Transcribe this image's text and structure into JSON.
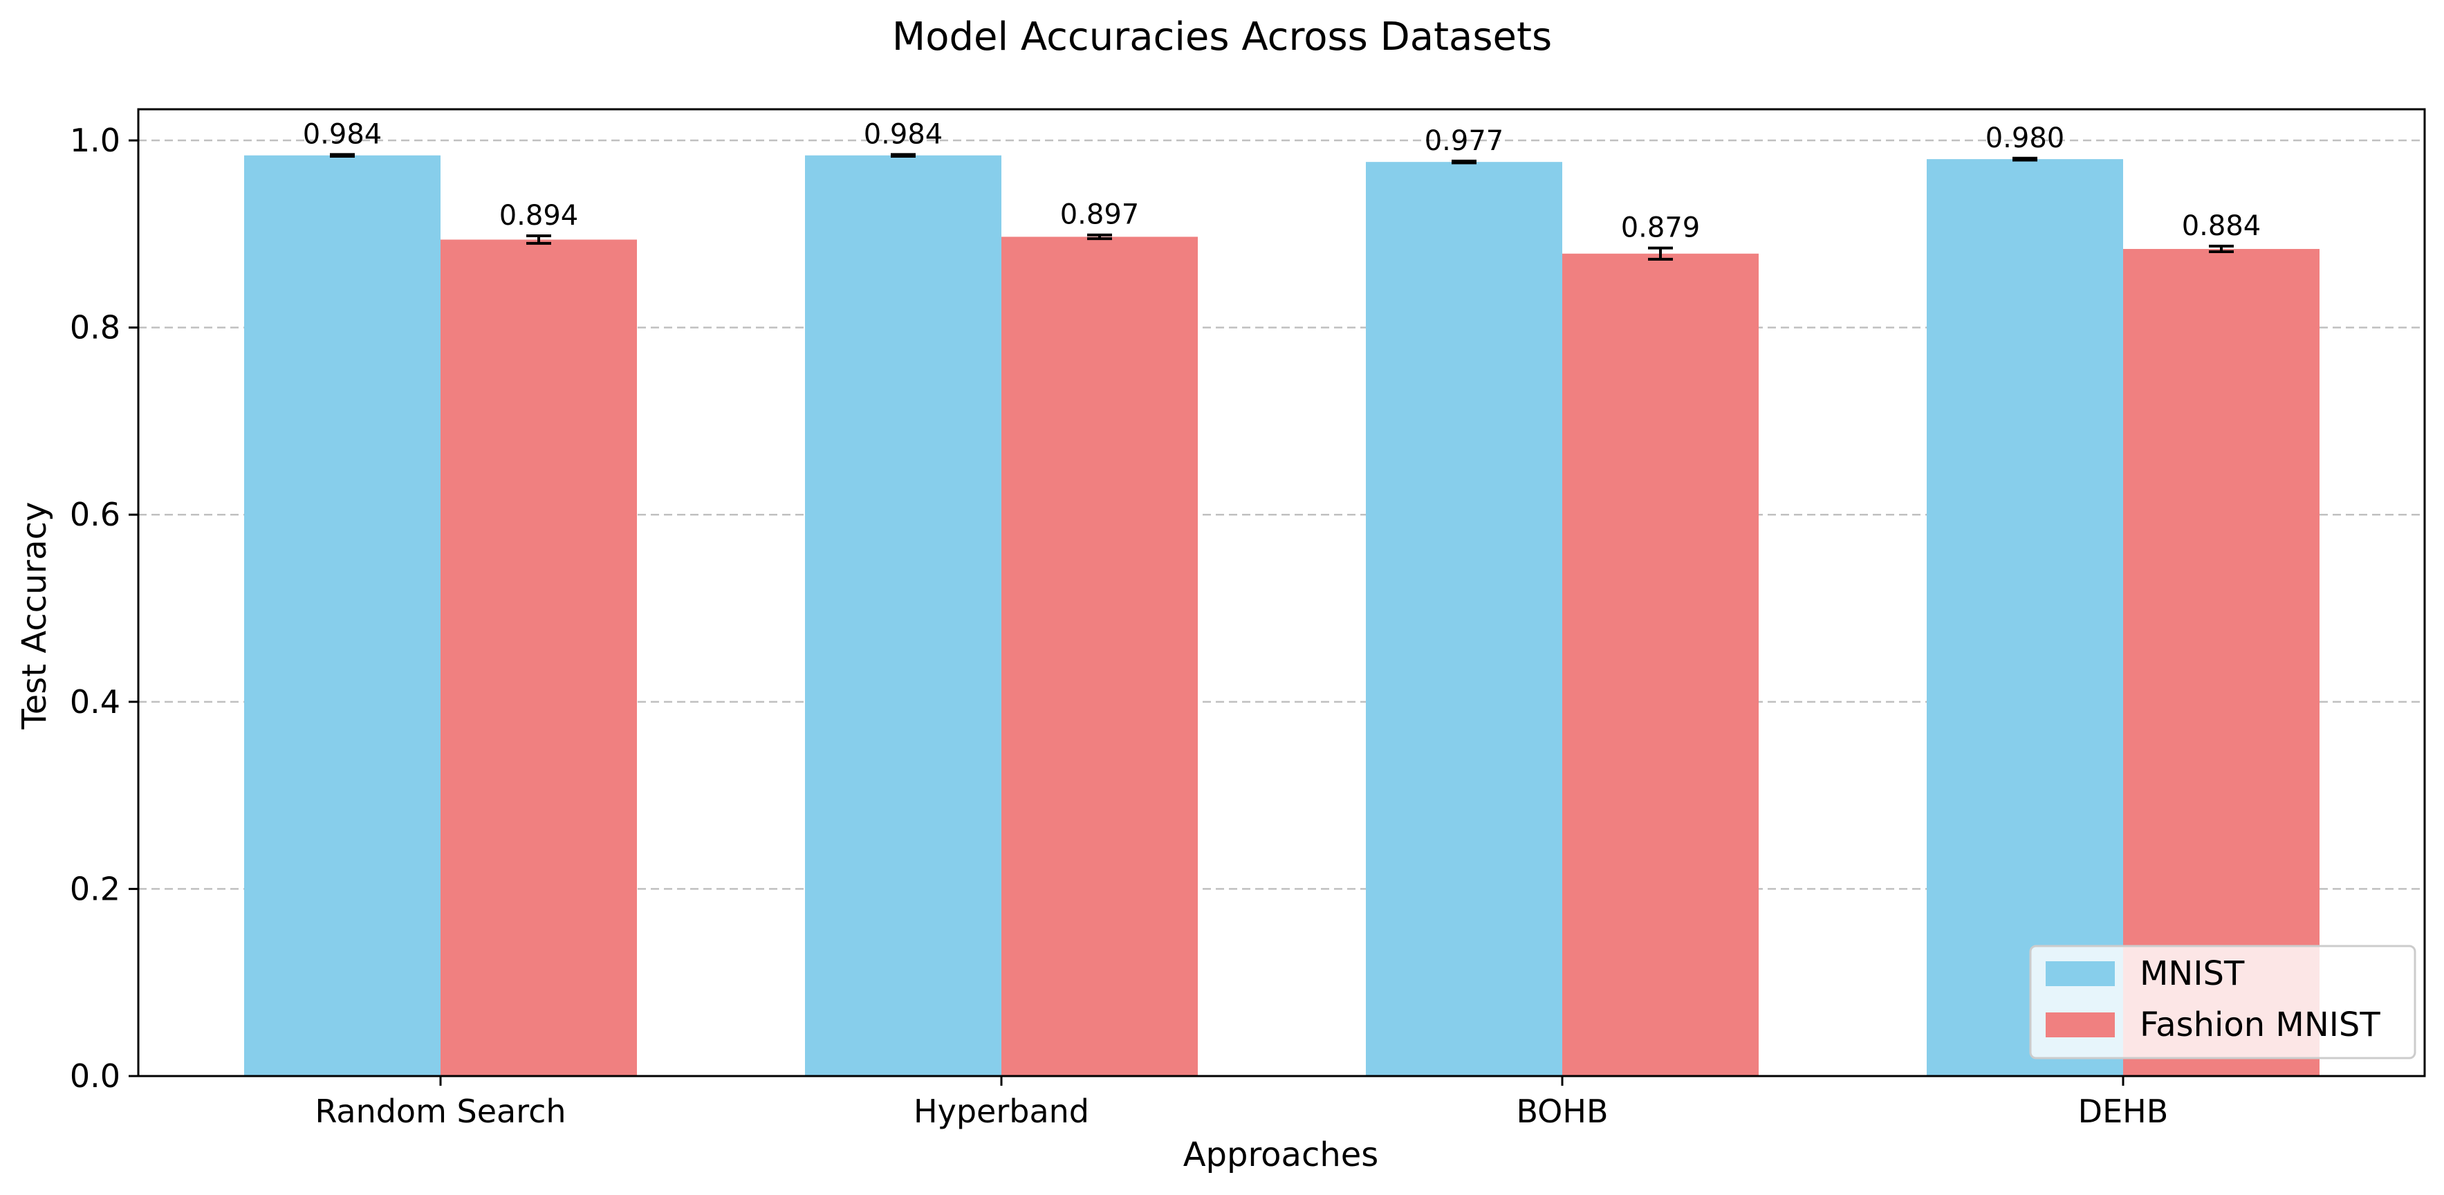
{
  "chart_data": {
    "type": "bar",
    "title": "Model Accuracies Across Datasets",
    "xlabel": "Approaches",
    "ylabel": "Test Accuracy",
    "categories": [
      "Random Search",
      "Hyperband",
      "BOHB",
      "DEHB"
    ],
    "series": [
      {
        "name": "MNIST",
        "color": "#87CEEB",
        "values": [
          0.984,
          0.984,
          0.977,
          0.98
        ],
        "errors": [
          0.001,
          0.001,
          0.001,
          0.001
        ],
        "labels": [
          "0.984",
          "0.984",
          "0.977",
          "0.980"
        ]
      },
      {
        "name": "Fashion MNIST",
        "color": "#F08080",
        "values": [
          0.894,
          0.897,
          0.879,
          0.884
        ],
        "errors": [
          0.004,
          0.002,
          0.006,
          0.003
        ],
        "labels": [
          "0.894",
          "0.897",
          "0.879",
          "0.884"
        ]
      }
    ],
    "ylim": [
      0,
      1.0333
    ],
    "yticks": [
      "0.0",
      "0.2",
      "0.4",
      "0.6",
      "0.8",
      "1.0"
    ],
    "grid": "y-dashed",
    "legend": "lower-right"
  }
}
